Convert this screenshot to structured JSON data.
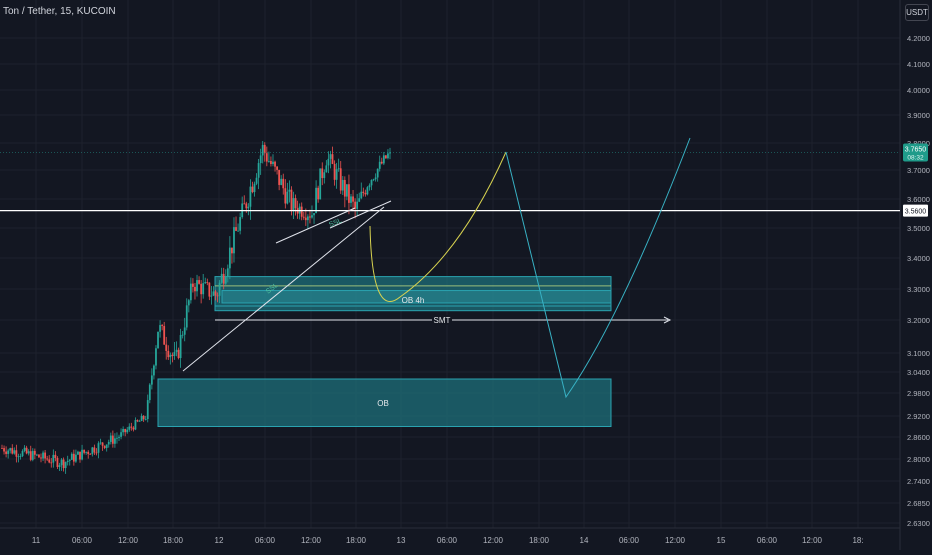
{
  "header": {
    "symbol_title": "Ton / Tether, 15, KUCOIN",
    "currency_button": "USDT"
  },
  "colors": {
    "background": "#131722",
    "grid": "#1e222d",
    "axis_text": "#b2b5be",
    "candle_up": "#26a69a",
    "candle_down": "#ef5350",
    "zone_fill": "#1e6f7a",
    "zone_edge": "#2aa3b0",
    "projection_yellow": "#d8d350",
    "projection_cyan": "#38b2c5",
    "level_line": "#ffffff",
    "price_badge": "#1f9b8a"
  },
  "chart_data": {
    "type": "candlestick",
    "symbol": "Ton / Tether",
    "interval": "15",
    "exchange": "KUCOIN",
    "ylim": [
      2.63,
      4.2
    ],
    "y_ticks": [
      "4.2000",
      "4.1000",
      "4.0000",
      "3.9000",
      "3.8000",
      "3.7000",
      "3.6000",
      "3.5000",
      "3.4000",
      "3.3000",
      "3.2000",
      "3.1000",
      "3.0400",
      "2.9800",
      "2.9200",
      "2.8600",
      "2.8000",
      "2.7400",
      "2.6850",
      "2.6300"
    ],
    "x_ticks": [
      "11",
      "06:00",
      "12:00",
      "18:00",
      "12",
      "06:00",
      "12:00",
      "18:00",
      "13",
      "06:00",
      "12:00",
      "18:00",
      "14",
      "06:00",
      "12:00",
      "15",
      "06:00",
      "12:00",
      "18:"
    ],
    "legend": [
      "3.7650",
      "08:32"
    ],
    "last_price": 3.765,
    "last_price_label": "3.7650",
    "countdown": "08:32",
    "level_price": 3.56,
    "level_label": "3.5600",
    "series": [
      {
        "name": "Ton / Tether",
        "segments": [
          {
            "from": 0,
            "to": 0.105,
            "open": 2.83,
            "close": 2.79,
            "noise": 0.02
          },
          {
            "from": 0.105,
            "to": 0.2,
            "open": 2.79,
            "close": 2.86,
            "noise": 0.02
          },
          {
            "from": 0.2,
            "to": 0.25,
            "open": 2.86,
            "close": 2.92,
            "noise": 0.015
          },
          {
            "from": 0.25,
            "to": 0.27,
            "open": 2.92,
            "close": 3.18,
            "noise": 0.03
          },
          {
            "from": 0.27,
            "to": 0.3,
            "open": 3.18,
            "close": 3.07,
            "noise": 0.04
          },
          {
            "from": 0.3,
            "to": 0.33,
            "open": 3.07,
            "close": 3.32,
            "noise": 0.04
          },
          {
            "from": 0.33,
            "to": 0.37,
            "open": 3.32,
            "close": 3.28,
            "noise": 0.04
          },
          {
            "from": 0.37,
            "to": 0.42,
            "open": 3.28,
            "close": 3.58,
            "noise": 0.05
          },
          {
            "from": 0.42,
            "to": 0.45,
            "open": 3.58,
            "close": 3.78,
            "noise": 0.06
          },
          {
            "from": 0.45,
            "to": 0.5,
            "open": 3.78,
            "close": 3.58,
            "noise": 0.05
          },
          {
            "from": 0.5,
            "to": 0.535,
            "open": 3.58,
            "close": 3.55,
            "noise": 0.04
          },
          {
            "from": 0.535,
            "to": 0.56,
            "open": 3.55,
            "close": 3.75,
            "noise": 0.05
          },
          {
            "from": 0.56,
            "to": 0.61,
            "open": 3.75,
            "close": 3.56,
            "noise": 0.05
          },
          {
            "from": 0.61,
            "to": 0.63,
            "open": 3.56,
            "close": 3.65,
            "noise": 0.04
          },
          {
            "from": 0.63,
            "to": 0.67,
            "open": 3.65,
            "close": 3.765,
            "noise": 0.03
          }
        ]
      }
    ],
    "zones": [
      {
        "label": "OB 4h",
        "top": 3.34,
        "bottom": 3.23
      },
      {
        "label": "",
        "top": 3.295,
        "bottom": 3.255
      },
      {
        "label": "OB",
        "top": 3.02,
        "bottom": 2.89
      }
    ],
    "annotations": [
      "SSL",
      "SSL",
      "SMT",
      "OB 4h",
      "OB"
    ]
  }
}
